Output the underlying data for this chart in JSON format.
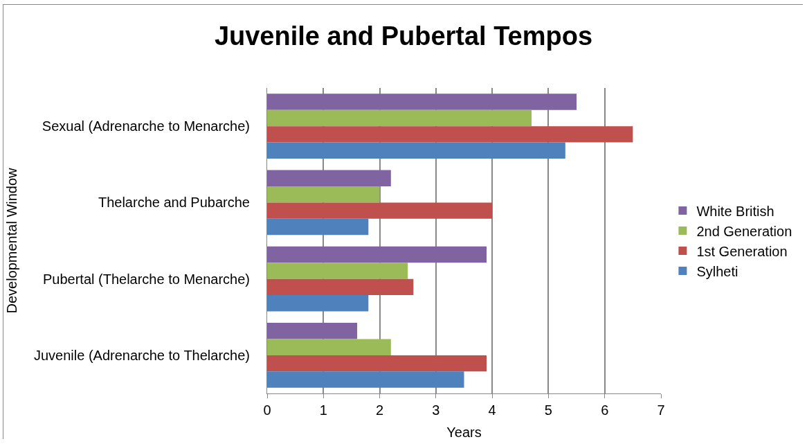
{
  "chart_data": {
    "type": "bar",
    "orientation": "horizontal",
    "title": "Juvenile and Pubertal Tempos",
    "xlabel": "Years",
    "ylabel": "Developmental Window",
    "categories": [
      "Sexual (Adrenarche to Menarche)",
      "Thelarche and Pubarche",
      "Pubertal (Thelarche to Menarche)",
      "Juvenile (Adrenarche to Thelarche)"
    ],
    "series": [
      {
        "name": "White British",
        "color": "#8064a2",
        "values": [
          5.5,
          2.2,
          3.9,
          1.6
        ]
      },
      {
        "name": "2nd Generation",
        "color": "#9bbb59",
        "values": [
          4.7,
          2.0,
          2.5,
          2.2
        ]
      },
      {
        "name": "1st Generation",
        "color": "#c0504d",
        "values": [
          6.5,
          4.0,
          2.6,
          3.9
        ]
      },
      {
        "name": "Sylheti",
        "color": "#4f81bd",
        "values": [
          5.3,
          1.8,
          1.8,
          3.5
        ]
      }
    ],
    "xlim": [
      0,
      7
    ],
    "xticks": [
      0,
      1,
      2,
      3,
      4,
      5,
      6,
      7
    ],
    "grid": "x",
    "legend": "right"
  }
}
